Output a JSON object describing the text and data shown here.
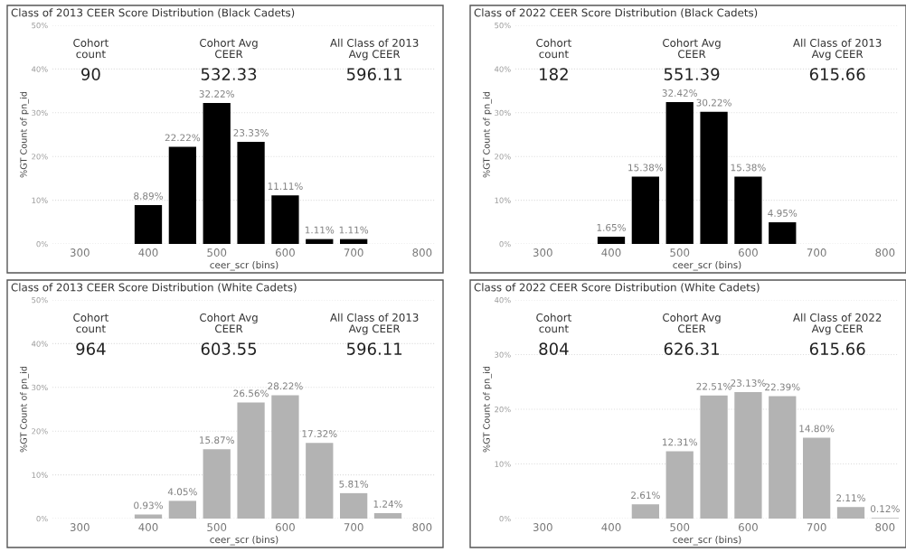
{
  "chart_data": [
    {
      "type": "bar",
      "title": "Class of 2013 CEER Score Distribution (Black Cadets)",
      "xlabel": "ceer_scr (bins)",
      "ylabel": "%GT Count of pn_id",
      "color": "#000000",
      "x": [
        400,
        450,
        500,
        550,
        600,
        650,
        700
      ],
      "values": [
        8.89,
        22.22,
        32.22,
        23.33,
        11.11,
        1.11,
        1.11
      ],
      "value_labels": [
        "8.89%",
        "22.22%",
        "32.22%",
        "23.33%",
        "11.11%",
        "1.11%",
        "1.11%"
      ],
      "xlim": [
        260,
        820
      ],
      "xticks": [
        300,
        400,
        500,
        600,
        700,
        800
      ],
      "ylim": [
        0,
        50
      ],
      "yticks": [
        {
          "value": 0,
          "label": "0%"
        },
        {
          "value": 10,
          "label": "10%"
        },
        {
          "value": 20,
          "label": "20%"
        },
        {
          "value": 30,
          "label": "30%"
        },
        {
          "value": 40,
          "label": "40%"
        },
        {
          "value": 50,
          "label": "50%"
        }
      ],
      "grid": "y",
      "annotations": [
        "Cohort\ncount",
        "Cohort Avg\nCEER",
        "All Class of 2013\nAvg CEER",
        "90",
        "532.33",
        "596.11"
      ]
    },
    {
      "type": "bar",
      "title": "Class of 2022 CEER Score Distribution (Black Cadets)",
      "xlabel": "ceer_scr (bins)",
      "ylabel": "%GT Count of pn_id",
      "color": "#000000",
      "x": [
        400,
        450,
        500,
        550,
        600,
        650
      ],
      "values": [
        1.65,
        15.38,
        32.42,
        30.22,
        15.38,
        4.95
      ],
      "value_labels": [
        "1.65%",
        "15.38%",
        "32.42%",
        "30.22%",
        "15.38%",
        "4.95%"
      ],
      "xlim": [
        260,
        820
      ],
      "xticks": [
        300,
        400,
        500,
        600,
        700,
        800
      ],
      "ylim": [
        0,
        50
      ],
      "yticks": [
        {
          "value": 0,
          "label": "0%"
        },
        {
          "value": 10,
          "label": "10%"
        },
        {
          "value": 20,
          "label": "20%"
        },
        {
          "value": 30,
          "label": "30%"
        },
        {
          "value": 40,
          "label": "40%"
        },
        {
          "value": 50,
          "label": "50%"
        }
      ],
      "grid": "y",
      "annotations": [
        "Cohort\ncount",
        "Cohort Avg\nCEER",
        "All Class of 2013\nAvg CEER",
        "182",
        "551.39",
        "615.66"
      ]
    },
    {
      "type": "bar",
      "title": "Class of 2013 CEER Score Distribution (White Cadets)",
      "xlabel": "ceer_scr (bins)",
      "ylabel": "%GT Count of pn_id",
      "color": "#b3b3b3",
      "x": [
        400,
        450,
        500,
        550,
        600,
        650,
        700,
        750
      ],
      "values": [
        0.93,
        4.05,
        15.87,
        26.56,
        28.22,
        17.32,
        5.81,
        1.24
      ],
      "value_labels": [
        "0.93%",
        "4.05%",
        "15.87%",
        "26.56%",
        "28.22%",
        "17.32%",
        "5.81%",
        "1.24%"
      ],
      "xlim": [
        260,
        820
      ],
      "xticks": [
        300,
        400,
        500,
        600,
        700,
        800
      ],
      "ylim": [
        0,
        50
      ],
      "yticks": [
        {
          "value": 0,
          "label": "0%"
        },
        {
          "value": 10,
          "label": "10%"
        },
        {
          "value": 20,
          "label": "20%"
        },
        {
          "value": 30,
          "label": "30%"
        },
        {
          "value": 40,
          "label": "40%"
        },
        {
          "value": 50,
          "label": "50%"
        }
      ],
      "grid": "y",
      "annotations": [
        "Cohort\ncount",
        "Cohort Avg\nCEER",
        "All Class of 2013\nAvg CEER",
        "964",
        "603.55",
        "596.11"
      ]
    },
    {
      "type": "bar",
      "title": "Class of 2022 CEER Score Distribution (White Cadets)",
      "xlabel": "ceer_scr (bins)",
      "ylabel": "%GT Count of pn_id",
      "color": "#b3b3b3",
      "x": [
        450,
        500,
        550,
        600,
        650,
        700,
        750,
        800
      ],
      "values": [
        2.61,
        12.31,
        22.51,
        23.13,
        22.39,
        14.8,
        2.11,
        0.12
      ],
      "value_labels": [
        "2.61%",
        "12.31%",
        "22.51%",
        "23.13%",
        "22.39%",
        "14.80%",
        "2.11%",
        "0.12%"
      ],
      "xlim": [
        260,
        820
      ],
      "xticks": [
        300,
        400,
        500,
        600,
        700,
        800
      ],
      "ylim": [
        0,
        40
      ],
      "yticks": [
        {
          "value": 0,
          "label": "0%"
        },
        {
          "value": 10,
          "label": "10%"
        },
        {
          "value": 20,
          "label": "20%"
        },
        {
          "value": 30,
          "label": "30%"
        },
        {
          "value": 40,
          "label": "40%"
        }
      ],
      "grid": "y",
      "annotations": [
        "Cohort\ncount",
        "Cohort Avg\nCEER",
        "All Class of 2022\nAvg CEER",
        "804",
        "626.31",
        "615.66"
      ]
    }
  ]
}
